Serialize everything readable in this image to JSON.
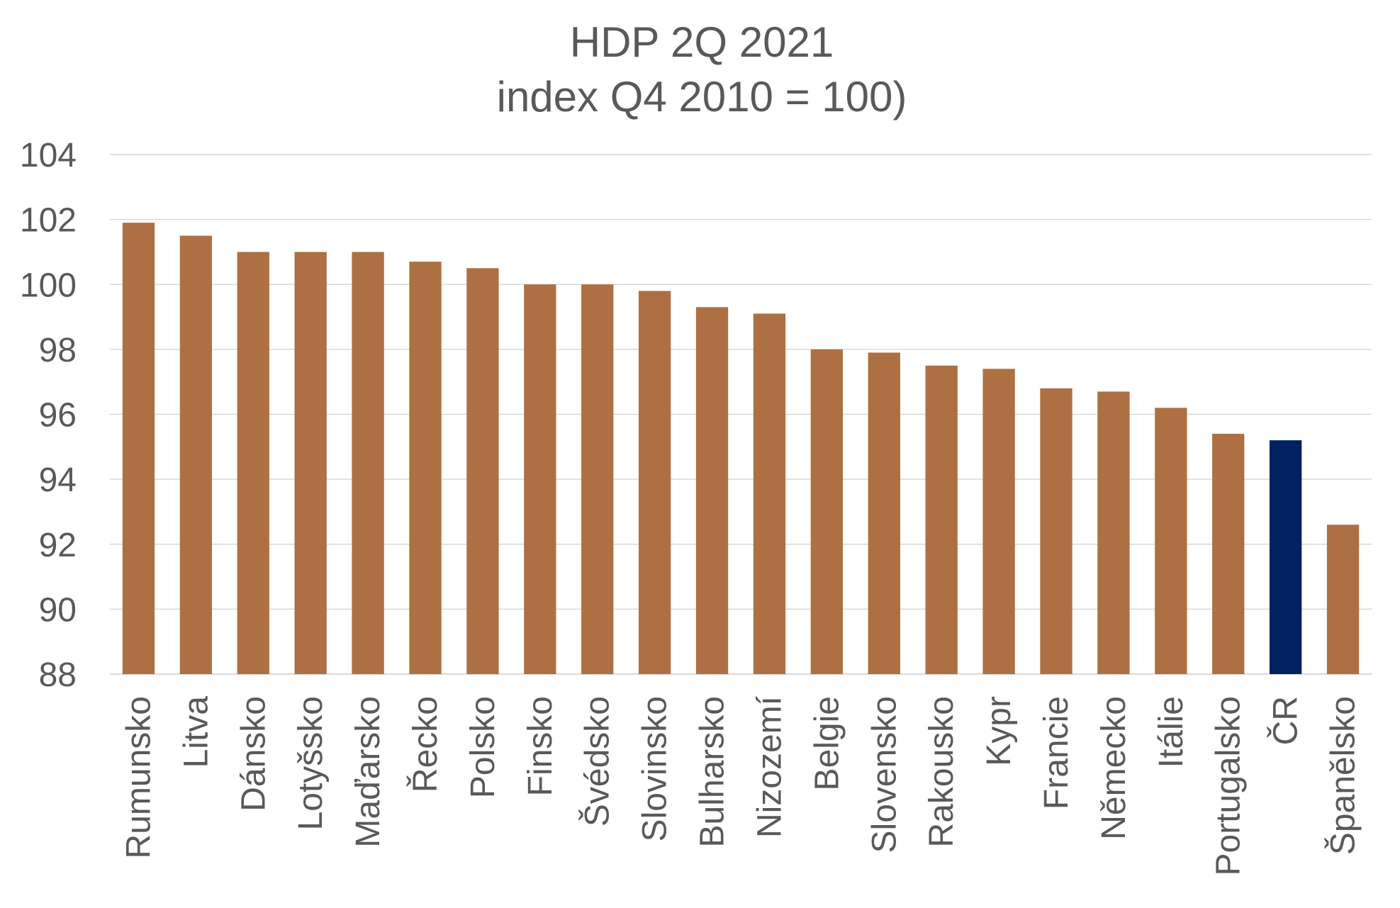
{
  "chart_data": {
    "type": "bar",
    "title": "HDP 2Q 2021",
    "subtitle": "index Q4 2010 = 100)",
    "xlabel": "",
    "ylabel": "",
    "ylim": [
      88,
      104
    ],
    "yticks": [
      88,
      90,
      92,
      94,
      96,
      98,
      100,
      102,
      104
    ],
    "ytick_labels": [
      "88",
      "90",
      "92",
      "94",
      "96",
      "98",
      "100",
      "102",
      "104"
    ],
    "grid": true,
    "legend": "none",
    "categories": [
      "Rumunsko",
      "Litva",
      "Dánsko",
      "Lotyšsko",
      "Maďarsko",
      "Řecko",
      "Polsko",
      "Finsko",
      "Švédsko",
      "Slovinsko",
      "Bulharsko",
      "Nizozemí",
      "Belgie",
      "Slovensko",
      "Rakousko",
      "Kypr",
      "Francie",
      "Německo",
      "Itálie",
      "Portugalsko",
      "ČR",
      "Španělsko"
    ],
    "values": [
      101.9,
      101.5,
      101.0,
      101.0,
      101.0,
      100.7,
      100.5,
      100.0,
      100.0,
      99.8,
      99.3,
      99.1,
      98.0,
      97.9,
      97.5,
      97.4,
      96.8,
      96.7,
      96.2,
      95.4,
      95.2,
      92.6
    ],
    "highlight_category": "ČR",
    "colors": {
      "bar": "#AE7042",
      "highlight": "#002060",
      "grid": "#D9D9D9",
      "text": "#595959"
    }
  }
}
